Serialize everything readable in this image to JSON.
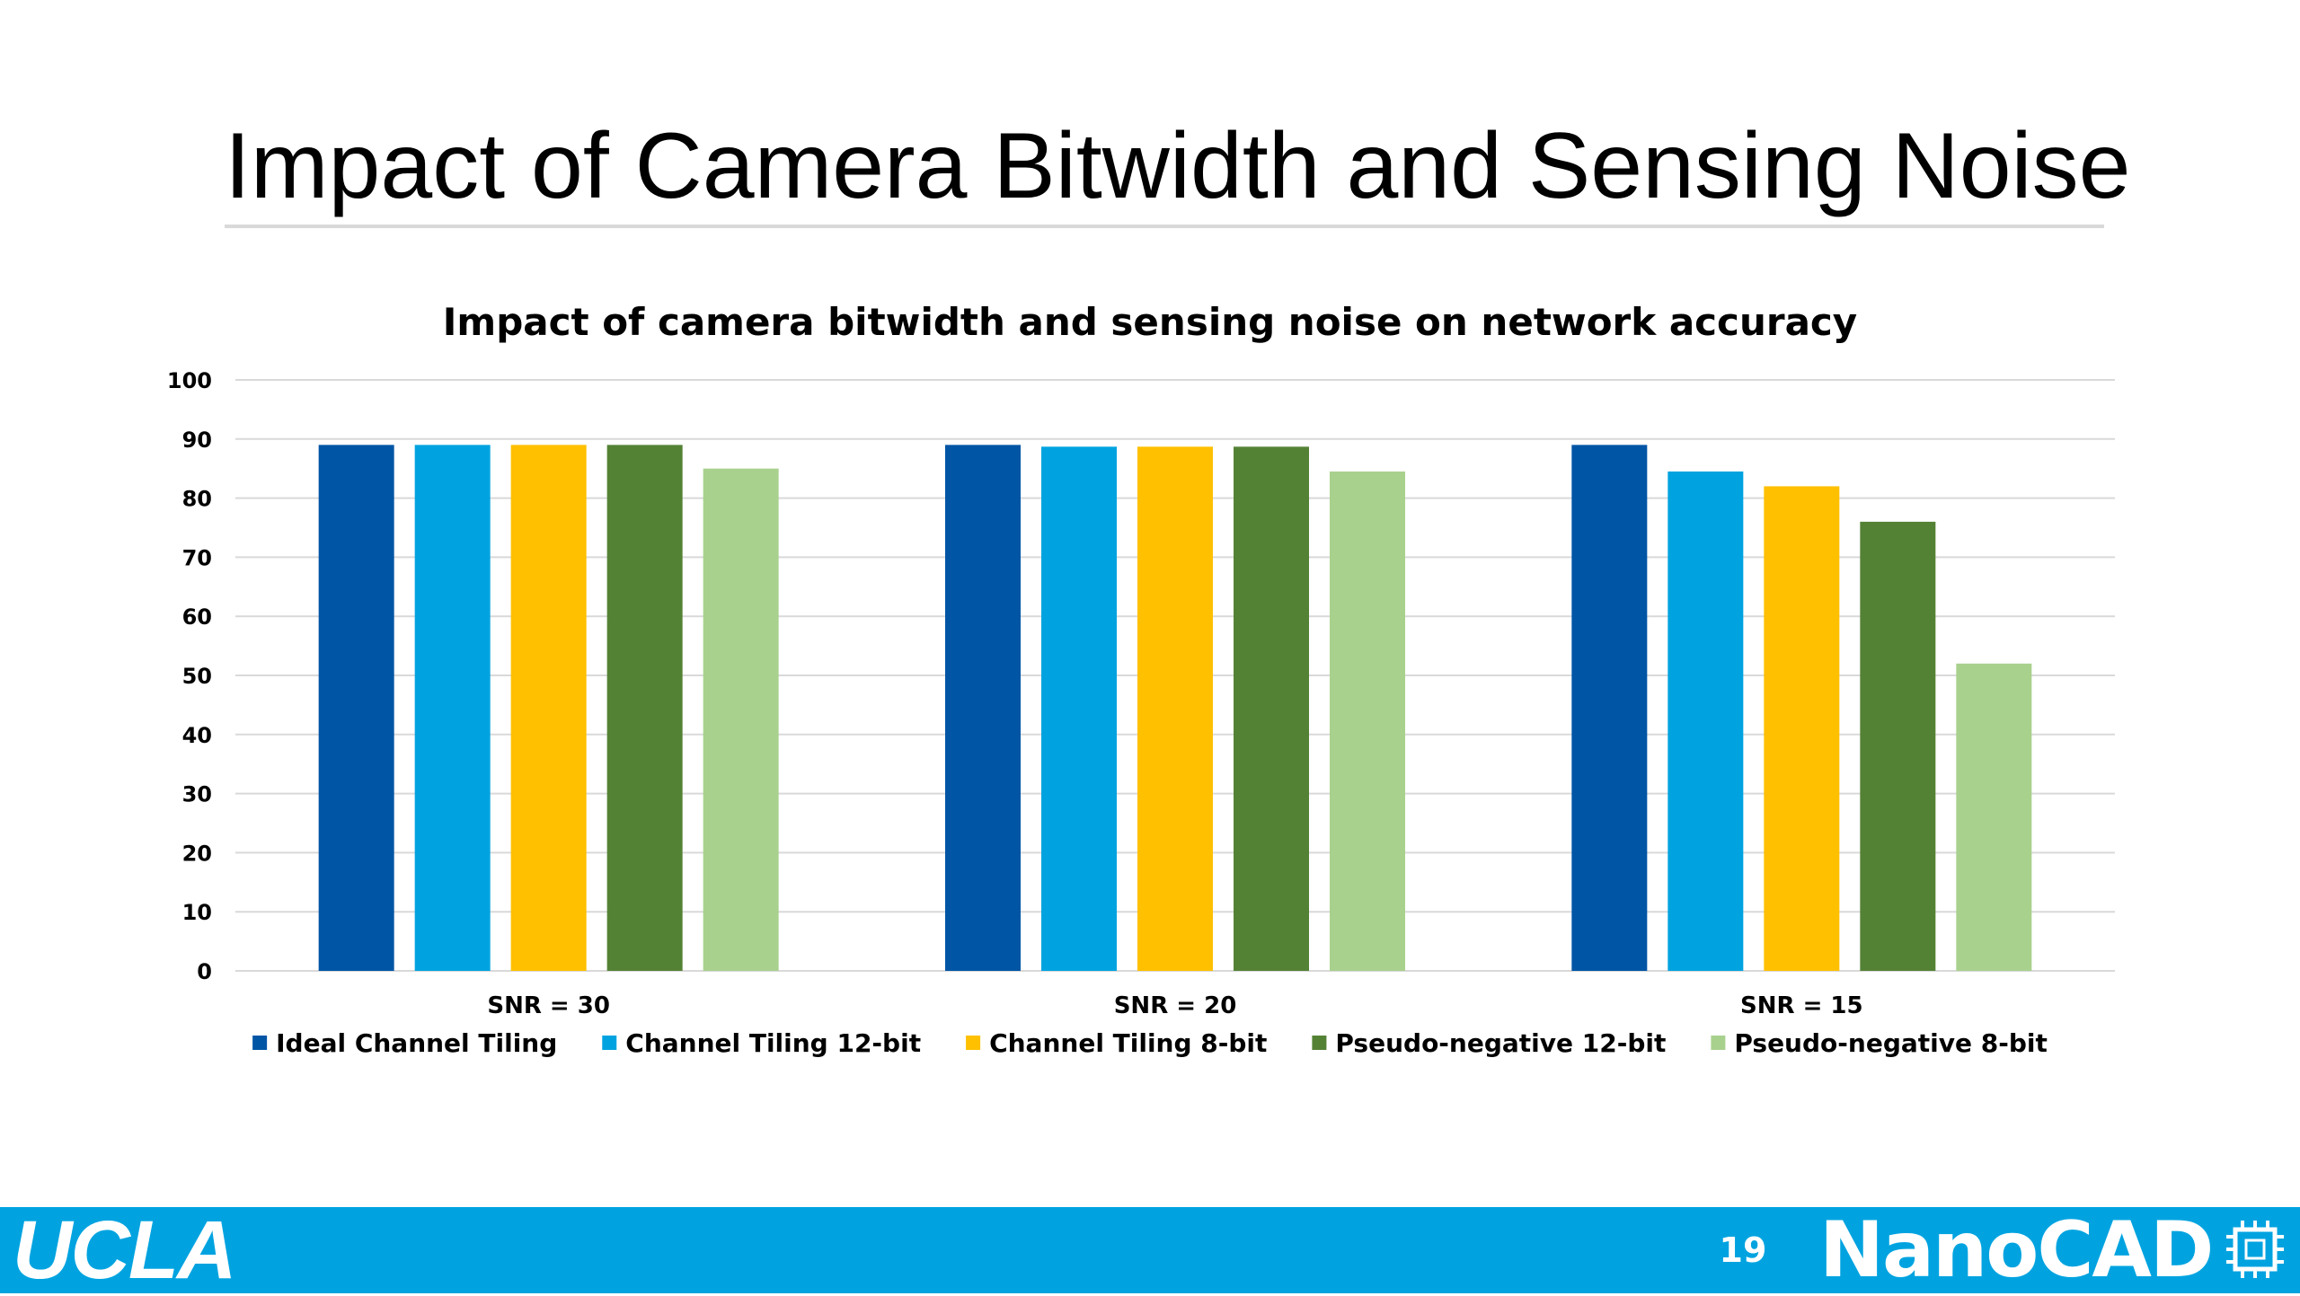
{
  "slide": {
    "title": "Impact of Camera Bitwidth and Sensing Noise",
    "page_number": "19",
    "footer_left_logo": "UCLA",
    "footer_right_logo": "NanoCAD",
    "footer_color": "#00a3e0"
  },
  "chart_data": {
    "type": "bar",
    "title": "Impact of camera bitwidth and sensing noise on network accuracy",
    "xlabel": "",
    "ylabel": "",
    "ylim": [
      0,
      100
    ],
    "yticks": [
      0,
      10,
      20,
      30,
      40,
      50,
      60,
      70,
      80,
      90,
      100
    ],
    "grid": true,
    "legend_position": "bottom",
    "categories": [
      "SNR = 30",
      "SNR = 20",
      "SNR = 15"
    ],
    "series": [
      {
        "name": "Ideal Channel Tiling",
        "color": "#0055a5",
        "values": [
          89,
          89,
          89
        ]
      },
      {
        "name": "Channel Tiling 12-bit",
        "color": "#00a3e0",
        "values": [
          89,
          88.7,
          84.5
        ]
      },
      {
        "name": "Channel Tiling 8-bit",
        "color": "#ffc000",
        "values": [
          89,
          88.7,
          82
        ]
      },
      {
        "name": "Pseudo-negative 12-bit",
        "color": "#548235",
        "values": [
          89,
          88.7,
          76
        ]
      },
      {
        "name": "Pseudo-negative 8-bit",
        "color": "#a9d18e",
        "values": [
          85,
          84.5,
          52
        ]
      }
    ]
  }
}
